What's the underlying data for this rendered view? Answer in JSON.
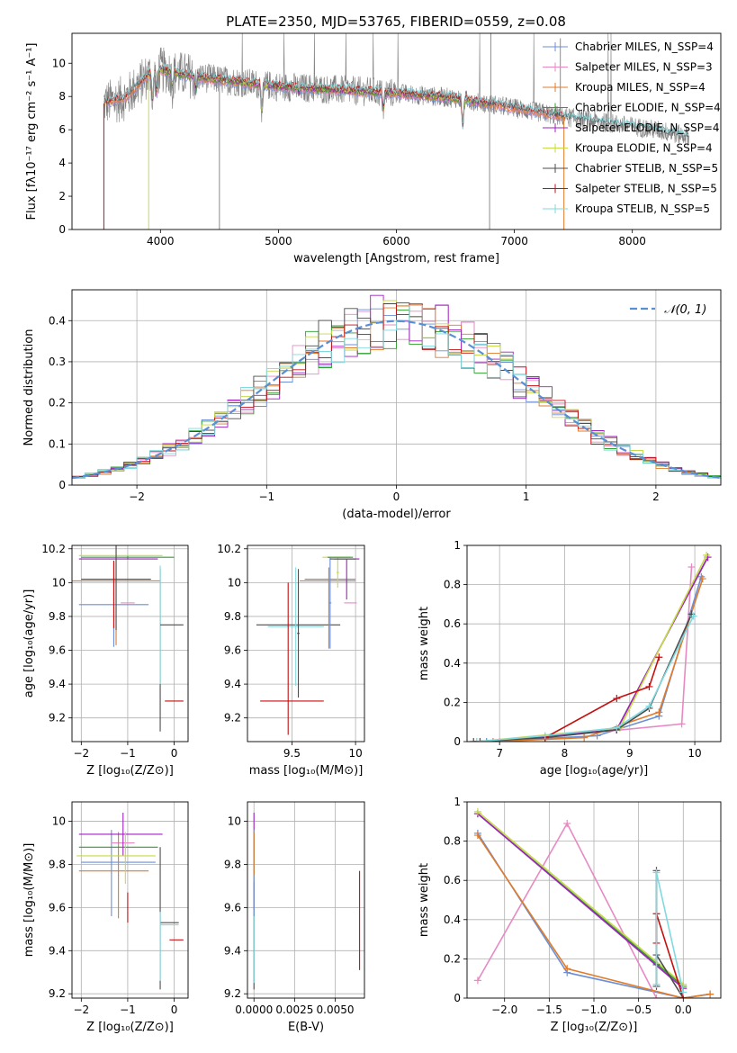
{
  "figure": {
    "title": "PLATE=2350, MJD=53765, FIBERID=0559, z=0.08"
  },
  "palette": [
    "#6b8fd6",
    "#e78ac3",
    "#e07b2a",
    "#2ca02c",
    "#a020c0",
    "#c8d94a",
    "#4d4d4d",
    "#c41010",
    "#7fdadf"
  ],
  "chart_data": [
    {
      "id": "spectrum",
      "type": "line",
      "title": "PLATE=2350, MJD=53765, FIBERID=0559, z=0.08",
      "xlabel": "wavelength [Angstrom, rest frame]",
      "ylabel": "Flux [fλ10⁻¹⁷ erg cm⁻² s⁻¹ A⁻¹]",
      "xlim": [
        3250,
        8750
      ],
      "ylim": [
        0,
        11.8
      ],
      "xticks": [
        4000,
        5000,
        6000,
        7000,
        8000
      ],
      "yticks": [
        0,
        2,
        4,
        6,
        8,
        10
      ],
      "grid": false,
      "legend_position": "upper-right",
      "data_color": "#7f7f7f",
      "data_range": [
        3520,
        7420,
        8480
      ],
      "continuum": [
        [
          3520,
          7.6
        ],
        [
          3700,
          7.9
        ],
        [
          3800,
          8.6
        ],
        [
          3900,
          9.3
        ],
        [
          4000,
          9.6
        ],
        [
          4200,
          9.3
        ],
        [
          4500,
          9.0
        ],
        [
          5000,
          8.6
        ],
        [
          5500,
          8.4
        ],
        [
          6000,
          8.2
        ],
        [
          6500,
          7.9
        ],
        [
          7000,
          7.3
        ],
        [
          7400,
          6.8
        ],
        [
          7800,
          6.4
        ],
        [
          8200,
          6.0
        ],
        [
          8480,
          5.6
        ]
      ],
      "absorption_dips": [
        [
          3934,
          1.0
        ],
        [
          3969,
          1.2
        ],
        [
          4102,
          1.5
        ],
        [
          4300,
          1.5
        ],
        [
          4861,
          1.0
        ],
        [
          5175,
          1.8
        ],
        [
          5890,
          1.3
        ],
        [
          6563,
          0.9
        ],
        [
          8542,
          0.6
        ]
      ],
      "tellurics": [
        [
          4500,
          0
        ],
        [
          6790,
          0
        ],
        [
          6800,
          11.8
        ],
        [
          7390,
          11.5
        ]
      ],
      "series": [
        {
          "name": "Chabrier MILES, N_SSP=4",
          "n_ssp": 4
        },
        {
          "name": "Salpeter MILES, N_SSP=3",
          "n_ssp": 3
        },
        {
          "name": "Kroupa MILES, N_SSP=4",
          "n_ssp": 4
        },
        {
          "name": "Chabrier ELODIE, N_SSP=4",
          "n_ssp": 4
        },
        {
          "name": "Salpeter ELODIE, N_SSP=4",
          "n_ssp": 4
        },
        {
          "name": "Kroupa ELODIE, N_SSP=4",
          "n_ssp": 4
        },
        {
          "name": "Chabrier STELIB, N_SSP=5",
          "n_ssp": 5
        },
        {
          "name": "Salpeter STELIB, N_SSP=5",
          "n_ssp": 5
        },
        {
          "name": "Kroupa STELIB, N_SSP=5",
          "n_ssp": 5
        }
      ],
      "model_ranges": [
        [
          3550,
          7400
        ],
        [
          3550,
          7400
        ],
        [
          3520,
          7420
        ],
        [
          3900,
          6800
        ],
        [
          3900,
          6800
        ],
        [
          3900,
          6800
        ],
        [
          3520,
          8480
        ],
        [
          3520,
          7420
        ],
        [
          3520,
          8480
        ]
      ],
      "model_edge_drops": [
        [
          3900,
          0
        ],
        [
          3520,
          0
        ],
        [
          7420,
          0
        ]
      ]
    },
    {
      "id": "residuals",
      "type": "histogram",
      "xlabel": "(data-model)/error",
      "ylabel": "Normed distribution",
      "xlim": [
        -2.5,
        2.5
      ],
      "ylim": [
        0,
        0.475
      ],
      "xticks": [
        -2,
        -1,
        0,
        1,
        2
      ],
      "yticks": [
        0.0,
        0.1,
        0.2,
        0.3,
        0.4
      ],
      "grid": true,
      "legend_position": "upper-right",
      "legend_label": "𝒩(0, 1)",
      "reference_curve": {
        "type": "gaussian",
        "mean": 0,
        "sigma": 1,
        "color": "#5b8fd4"
      },
      "bin_width": 0.1,
      "bin_start": -2.5,
      "series_color_order": [
        0,
        1,
        2,
        3,
        4,
        5,
        6,
        7,
        8
      ]
    },
    {
      "id": "age-vs-z",
      "type": "errorbar",
      "xlabel": "Z [log₁₀(Z/Z⊙)]",
      "ylabel": "age  [log₁₀(age/yr)]",
      "xlim": [
        -2.2,
        0.3
      ],
      "ylim": [
        9.06,
        10.22
      ],
      "xticks": [
        -2,
        -1,
        0
      ],
      "yticks": [
        9.2,
        9.4,
        9.6,
        9.8,
        10.0,
        10.2
      ],
      "grid": true,
      "points": [
        {
          "x": -1.3,
          "xerr": 0.75,
          "y": 9.87,
          "yerr": 0.25,
          "c": 0
        },
        {
          "x": -1.0,
          "xerr": 0.15,
          "y": 9.88,
          "yerr": 0.0,
          "c": 1
        },
        {
          "x": -1.25,
          "xerr": 0.95,
          "y": 10.01,
          "yerr": 0.38,
          "c": 2
        },
        {
          "x": -1.0,
          "xerr": 1.0,
          "y": 10.15,
          "yerr": 0.01,
          "c": 3
        },
        {
          "x": -1.2,
          "xerr": 0.85,
          "y": 10.14,
          "yerr": 0.0,
          "c": 4
        },
        {
          "x": -1.15,
          "xerr": 0.9,
          "y": 10.16,
          "yerr": 0.0,
          "c": 5
        },
        {
          "x": -1.25,
          "xerr": 0.75,
          "y": 10.02,
          "yerr": 0.3,
          "c": 6
        },
        {
          "x": -0.3,
          "xerr": 0.01,
          "y": 9.6,
          "yerr": 0.48,
          "c": 6
        },
        {
          "x": -0.3,
          "xerr": 0.0,
          "y": 9.75,
          "yerr": 0.35,
          "c": 8
        },
        {
          "x": 0.0,
          "xerr": 0.2,
          "y": 9.3,
          "yerr": 0.0,
          "c": 7
        },
        {
          "x": -0.05,
          "xerr": 0.25,
          "y": 9.75,
          "yerr": 0.0,
          "c": 6
        },
        {
          "x": -1.3,
          "xerr": 0.01,
          "y": 9.93,
          "yerr": 0.2,
          "c": 7
        }
      ]
    },
    {
      "id": "age-vs-mass",
      "type": "errorbar",
      "xlabel": "mass [log₁₀(M/M⊙)]",
      "ylabel": "",
      "xlim": [
        9.15,
        10.07
      ],
      "ylim": [
        9.06,
        10.22
      ],
      "xticks": [
        9.5,
        10.0
      ],
      "yticks": [
        9.2,
        9.4,
        9.6,
        9.8,
        10.0,
        10.2
      ],
      "grid": true,
      "points": [
        {
          "x": 9.55,
          "xerr": 0.33,
          "y": 9.75,
          "yerr": 0.0,
          "c": 6
        },
        {
          "x": 9.53,
          "xerr": 0.22,
          "y": 9.74,
          "yerr": 0.35,
          "c": 8
        },
        {
          "x": 9.55,
          "xerr": 0.01,
          "y": 9.7,
          "yerr": 0.38,
          "c": 6
        },
        {
          "x": 9.5,
          "xerr": 0.25,
          "y": 9.3,
          "yerr": 0.0,
          "c": 7
        },
        {
          "x": 9.47,
          "xerr": 0.0,
          "y": 9.55,
          "yerr": 0.45,
          "c": 7
        },
        {
          "x": 9.8,
          "xerr": 0.2,
          "y": 10.02,
          "yerr": 0.0,
          "c": 0
        },
        {
          "x": 9.8,
          "xerr": 0.01,
          "y": 9.88,
          "yerr": 0.27,
          "c": 0
        },
        {
          "x": 9.78,
          "xerr": 0.22,
          "y": 10.01,
          "yerr": 0.0,
          "c": 2
        },
        {
          "x": 9.79,
          "xerr": 0.0,
          "y": 9.85,
          "yerr": 0.24,
          "c": 2
        },
        {
          "x": 9.96,
          "xerr": 0.05,
          "y": 9.88,
          "yerr": 0.0,
          "c": 1
        },
        {
          "x": 9.85,
          "xerr": 0.11,
          "y": 10.15,
          "yerr": 0.0,
          "c": 5
        },
        {
          "x": 9.86,
          "xerr": 0.01,
          "y": 10.06,
          "yerr": 0.09,
          "c": 5
        },
        {
          "x": 9.93,
          "xerr": 0.1,
          "y": 10.14,
          "yerr": 0.0,
          "c": 4
        },
        {
          "x": 9.93,
          "xerr": 0.0,
          "y": 10.02,
          "yerr": 0.12,
          "c": 4
        },
        {
          "x": 9.88,
          "xerr": 0.1,
          "y": 10.15,
          "yerr": 0.0,
          "c": 3
        },
        {
          "x": 9.9,
          "xerr": 0.1,
          "y": 10.14,
          "yerr": 0.0,
          "c": 6
        }
      ]
    },
    {
      "id": "mass-weight-vs-age",
      "type": "line",
      "xlabel": "age  [log₁₀(age/yr)]",
      "ylabel": "mass weight",
      "xlim": [
        6.5,
        10.4
      ],
      "ylim": [
        0,
        1.0
      ],
      "xticks": [
        7,
        8,
        9,
        10
      ],
      "yticks": [
        0.0,
        0.2,
        0.4,
        0.6,
        0.8,
        1.0
      ],
      "grid": true,
      "series": [
        {
          "c": 0,
          "x": [
            6.8,
            8.5,
            9.45,
            10.1
          ],
          "y": [
            0.0,
            0.03,
            0.13,
            0.84
          ]
        },
        {
          "c": 1,
          "x": [
            7.0,
            9.8,
            9.95
          ],
          "y": [
            0.0,
            0.09,
            0.89
          ]
        },
        {
          "c": 2,
          "x": [
            6.9,
            8.3,
            9.45,
            10.12
          ],
          "y": [
            0.0,
            0.02,
            0.15,
            0.83
          ]
        },
        {
          "c": 3,
          "x": [
            6.7,
            8.8,
            10.2
          ],
          "y": [
            0.0,
            0.06,
            0.94
          ]
        },
        {
          "c": 4,
          "x": [
            6.7,
            8.8,
            10.2
          ],
          "y": [
            0.0,
            0.06,
            0.94
          ]
        },
        {
          "c": 5,
          "x": [
            6.65,
            8.85,
            10.18
          ],
          "y": [
            0.0,
            0.07,
            0.95
          ]
        },
        {
          "c": 6,
          "x": [
            6.6,
            7.7,
            8.8,
            9.3,
            9.95
          ],
          "y": [
            0.0,
            0.02,
            0.06,
            0.17,
            0.65
          ]
        },
        {
          "c": 7,
          "x": [
            7.7,
            8.8,
            9.3,
            9.45
          ],
          "y": [
            0.02,
            0.22,
            0.28,
            0.43
          ]
        },
        {
          "c": 8,
          "x": [
            6.65,
            7.7,
            8.8,
            9.3,
            9.98
          ],
          "y": [
            0.0,
            0.03,
            0.07,
            0.18,
            0.64
          ]
        }
      ]
    },
    {
      "id": "mass-vs-z",
      "type": "errorbar",
      "xlabel": "Z [log₁₀(Z/Z⊙)]",
      "ylabel": "mass [log₁₀(M/M⊙)]",
      "xlim": [
        -2.2,
        0.3
      ],
      "ylim": [
        9.18,
        10.09
      ],
      "xticks": [
        -2,
        -1,
        0
      ],
      "yticks": [
        9.2,
        9.4,
        9.6,
        9.8,
        10.0
      ],
      "grid": true,
      "points": [
        {
          "x": -1.2,
          "xerr": 0.8,
          "y": 9.81,
          "yerr": 0.0,
          "c": 0
        },
        {
          "x": -1.35,
          "xerr": 0.01,
          "y": 9.76,
          "yerr": 0.2,
          "c": 0
        },
        {
          "x": -1.1,
          "xerr": 0.25,
          "y": 9.9,
          "yerr": 0.0,
          "c": 1
        },
        {
          "x": -1.3,
          "xerr": 0.75,
          "y": 9.77,
          "yerr": 0.0,
          "c": 2
        },
        {
          "x": -1.2,
          "xerr": 0.01,
          "y": 9.75,
          "yerr": 0.2,
          "c": 2
        },
        {
          "x": -1.2,
          "xerr": 0.85,
          "y": 9.88,
          "yerr": 0.0,
          "c": 3
        },
        {
          "x": -1.15,
          "xerr": 0.9,
          "y": 9.94,
          "yerr": 0.0,
          "c": 4
        },
        {
          "x": -1.1,
          "xerr": 0.01,
          "y": 9.94,
          "yerr": 0.1,
          "c": 4
        },
        {
          "x": -1.25,
          "xerr": 0.85,
          "y": 9.84,
          "yerr": 0.0,
          "c": 5
        },
        {
          "x": -1.05,
          "xerr": 0.01,
          "y": 9.83,
          "yerr": 0.12,
          "c": 5
        },
        {
          "x": -0.3,
          "xerr": 0.0,
          "y": 9.55,
          "yerr": 0.33,
          "c": 6
        },
        {
          "x": -0.1,
          "xerr": 0.2,
          "y": 9.53,
          "yerr": 0.0,
          "c": 6
        },
        {
          "x": -0.3,
          "xerr": 0.0,
          "y": 9.42,
          "yerr": 0.16,
          "c": 8
        },
        {
          "x": -0.1,
          "xerr": 0.2,
          "y": 9.52,
          "yerr": 0.0,
          "c": 8
        },
        {
          "x": 0.05,
          "xerr": 0.15,
          "y": 9.45,
          "yerr": 0.0,
          "c": 7
        },
        {
          "x": -1.0,
          "xerr": 0.01,
          "y": 9.6,
          "yerr": 0.07,
          "c": 7
        }
      ]
    },
    {
      "id": "mass-vs-ebv",
      "type": "errorbar",
      "xlabel": "E(B-V)",
      "ylabel": "",
      "xlim": [
        -0.0004,
        0.0068
      ],
      "ylim": [
        9.18,
        10.09
      ],
      "xticks": [
        0.0,
        0.0025,
        0.005
      ],
      "xticklabels": [
        "0.0000",
        "0.0025",
        "0.0050"
      ],
      "yticks": [
        9.2,
        9.4,
        9.6,
        9.8,
        10.0
      ],
      "grid": true,
      "points": [
        {
          "x": 0.0,
          "xerr": 0.0,
          "y": 9.55,
          "yerr": 0.33,
          "c": 6
        },
        {
          "x": 0.0,
          "xerr": 0.0,
          "y": 9.42,
          "yerr": 0.17,
          "c": 8
        },
        {
          "x": 0.0,
          "xerr": 0.0,
          "y": 9.94,
          "yerr": 0.1,
          "c": 4
        },
        {
          "x": 0.0,
          "xerr": 0.0,
          "y": 9.84,
          "yerr": 0.12,
          "c": 5
        },
        {
          "x": 0.0,
          "xerr": 0.0,
          "y": 9.76,
          "yerr": 0.2,
          "c": 0
        },
        {
          "x": 0.0,
          "xerr": 0.0,
          "y": 9.85,
          "yerr": 0.1,
          "c": 2
        },
        {
          "x": 0.0065,
          "xerr": 0.0,
          "y": 9.54,
          "yerr": 0.23,
          "c": 7
        }
      ]
    },
    {
      "id": "mass-weight-vs-z",
      "type": "line",
      "xlabel": "Z [log₁₀(Z/Z⊙)]",
      "ylabel": "mass weight",
      "xlim": [
        -2.42,
        0.42
      ],
      "ylim": [
        0,
        1.0
      ],
      "xticks": [
        -2.0,
        -1.5,
        -1.0,
        -0.5,
        0.0
      ],
      "xticklabels": [
        "−2.0",
        "−1.5",
        "−1.0",
        "−0.5",
        "0.0"
      ],
      "yticks": [
        0.0,
        0.2,
        0.4,
        0.6,
        0.8,
        1.0
      ],
      "grid": true,
      "series": [
        {
          "c": 0,
          "x": [
            -2.3,
            -1.3,
            0.0,
            0.3
          ],
          "y": [
            0.84,
            0.13,
            0.0,
            0.02
          ]
        },
        {
          "c": 1,
          "x": [
            -2.3,
            -1.3,
            -0.3
          ],
          "y": [
            0.09,
            0.89,
            0.0
          ]
        },
        {
          "c": 2,
          "x": [
            -2.3,
            -1.3,
            0.0,
            0.3
          ],
          "y": [
            0.83,
            0.15,
            0.0,
            0.02
          ]
        },
        {
          "c": 3,
          "x": [
            -2.3,
            0.0
          ],
          "y": [
            0.94,
            0.06
          ]
        },
        {
          "c": 4,
          "x": [
            -2.3,
            0.0
          ],
          "y": [
            0.94,
            0.05
          ]
        },
        {
          "c": 5,
          "x": [
            -2.3,
            0.0
          ],
          "y": [
            0.95,
            0.07
          ]
        },
        {
          "c": 6,
          "x": [
            -0.3,
            -0.3,
            -0.3,
            -0.3,
            0.0
          ],
          "y": [
            0.06,
            0.17,
            0.65,
            0.22,
            0.0
          ]
        },
        {
          "c": 7,
          "x": [
            -0.3,
            -0.3,
            0.0
          ],
          "y": [
            0.28,
            0.43,
            0.0
          ]
        },
        {
          "c": 8,
          "x": [
            -0.3,
            -0.3,
            0.0
          ],
          "y": [
            0.07,
            0.64,
            0.03
          ]
        }
      ]
    }
  ]
}
